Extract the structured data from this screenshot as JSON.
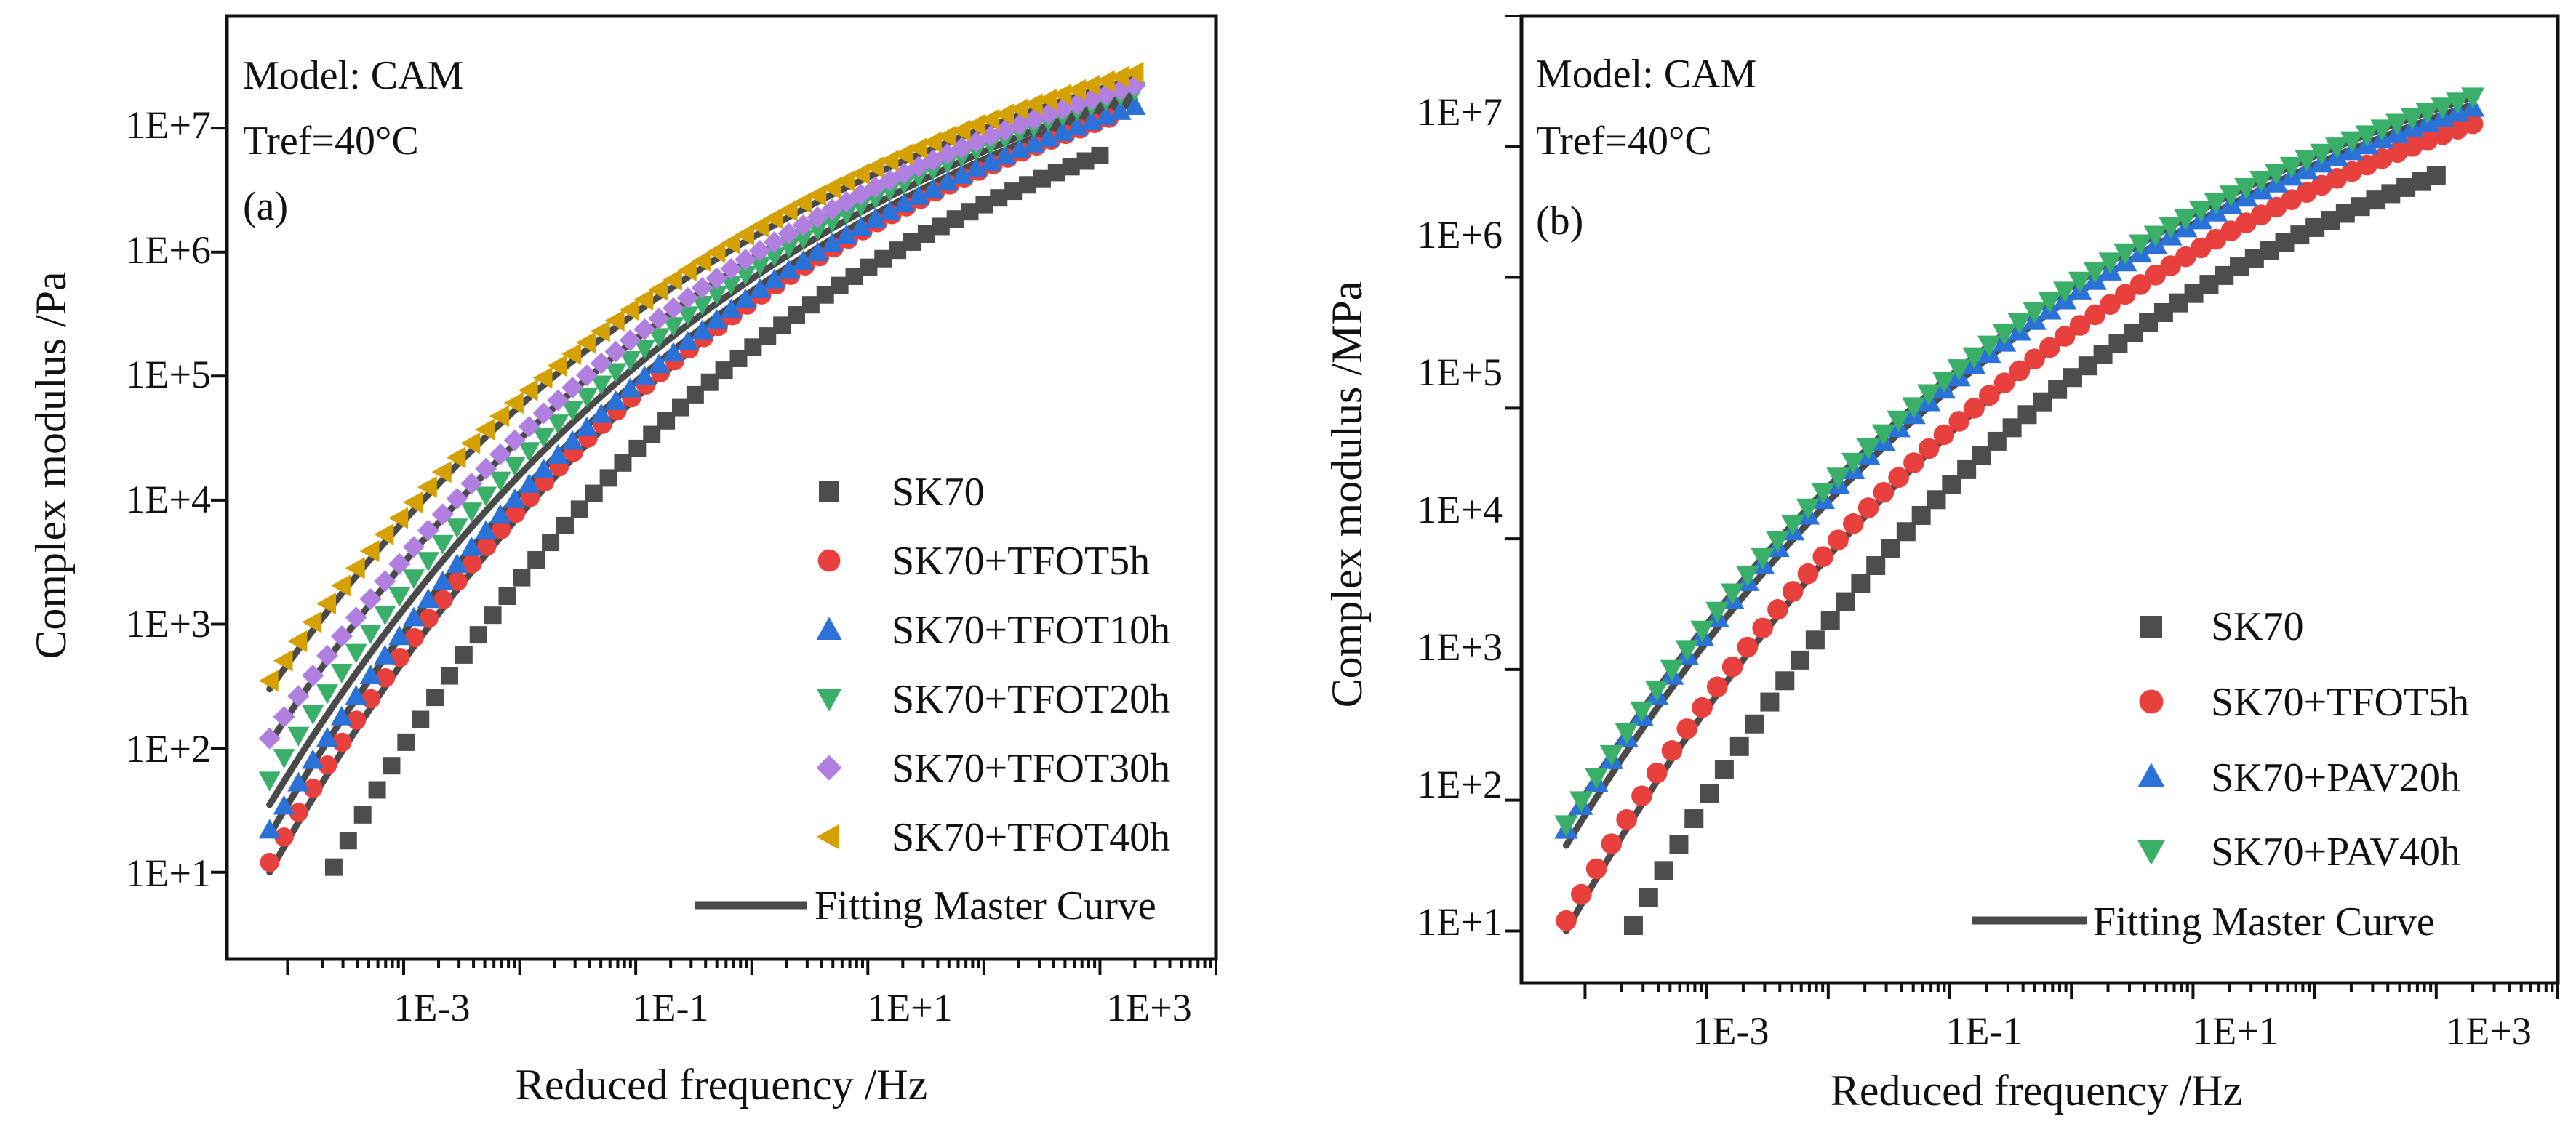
{
  "chart_data": [
    {
      "type": "scatter",
      "panel": "a",
      "annotations": [
        "Model: CAM",
        "Tref=40°C",
        "(a)"
      ],
      "xlabel": "Reduced frequency /Hz",
      "ylabel": "Complex modulus /Pa",
      "xscale": "log",
      "yscale": "log",
      "xlim": [
        3e-05,
        10000
      ],
      "ylim": [
        2,
        80000000
      ],
      "xticks": [
        0.001,
        0.1,
        10,
        1000
      ],
      "xtick_labels": [
        "1E-3",
        "1E-1",
        "1E+1",
        "1E+3"
      ],
      "yticks": [
        10,
        100,
        1000,
        10000,
        100000,
        1000000,
        10000000
      ],
      "ytick_labels": [
        "1E+1",
        "1E+2",
        "1E+3",
        "1E+4",
        "1E+5",
        "1E+6",
        "1E+7"
      ],
      "legend_position": "bottom-right",
      "fit_label": "Fitting Master Curve",
      "series": [
        {
          "name": "SK70",
          "marker": "square",
          "color": "#4d4d4d",
          "x_range": [
            0.00025,
            1000
          ],
          "y_range": [
            11,
            6000000
          ]
        },
        {
          "name": "SK70+TFOT5h",
          "marker": "circle",
          "color": "#e8403c",
          "x_range": [
            7e-05,
            1200
          ],
          "y_range": [
            12,
            12000000
          ]
        },
        {
          "name": "SK70+TFOT10h",
          "marker": "triangle-up",
          "color": "#2b72d8",
          "x_range": [
            7e-05,
            2000
          ],
          "y_range": [
            22,
            15000000
          ]
        },
        {
          "name": "SK70+TFOT20h",
          "marker": "triangle-down",
          "color": "#3aaf6a",
          "x_range": [
            7e-05,
            2000
          ],
          "y_range": [
            55,
            20000000
          ]
        },
        {
          "name": "SK70+TFOT30h",
          "marker": "diamond",
          "color": "#b07fe0",
          "x_range": [
            7e-05,
            2000
          ],
          "y_range": [
            120,
            22000000
          ]
        },
        {
          "name": "SK70+TFOT40h",
          "marker": "triangle-left",
          "color": "#d4a100",
          "x_range": [
            7e-05,
            2000
          ],
          "y_range": [
            350,
            28000000
          ]
        }
      ],
      "fits": [
        {
          "x_range": [
            7e-05,
            2000
          ],
          "y_range": [
            10,
            16000000
          ]
        },
        {
          "x_range": [
            7e-05,
            2000
          ],
          "y_range": [
            20,
            17000000
          ]
        },
        {
          "x_range": [
            7e-05,
            2000
          ],
          "y_range": [
            35,
            19000000
          ]
        },
        {
          "x_range": [
            7e-05,
            2000
          ],
          "y_range": [
            110,
            21000000
          ]
        },
        {
          "x_range": [
            7e-05,
            2000
          ],
          "y_range": [
            300,
            25000000
          ]
        }
      ]
    },
    {
      "type": "scatter",
      "panel": "b",
      "annotations": [
        "Model: CAM",
        "Tref=40°C",
        "(b)"
      ],
      "xlabel": "Reduced frequency /Hz",
      "ylabel": "Complex modulus /MPa",
      "xscale": "log",
      "yscale": "log",
      "xlim": [
        3e-05,
        10000
      ],
      "ylim": [
        4,
        100000000
      ],
      "xticks": [
        0.001,
        0.1,
        10,
        1000
      ],
      "xtick_labels": [
        "1E-3",
        "1E-1",
        "1E+1",
        "1E+3"
      ],
      "yticks": [
        10,
        100,
        1000,
        10000,
        100000,
        1000000,
        10000000
      ],
      "ytick_labels": [
        "1E+1",
        "1E+2",
        "1E+3",
        "1E+4",
        "1E+5",
        "1E+6",
        "1E+7"
      ],
      "legend_position": "bottom-right",
      "fit_label": "Fitting Master Curve",
      "series": [
        {
          "name": "SK70",
          "marker": "square",
          "color": "#4d4d4d",
          "x_range": [
            0.00025,
            1000
          ],
          "y_range": [
            11,
            6000000
          ]
        },
        {
          "name": "SK70+TFOT5h",
          "marker": "circle",
          "color": "#e8403c",
          "x_range": [
            7e-05,
            2000
          ],
          "y_range": [
            12,
            15000000
          ]
        },
        {
          "name": "SK70+PAV20h",
          "marker": "triangle-up",
          "color": "#2b72d8",
          "x_range": [
            7e-05,
            2000
          ],
          "y_range": [
            60,
            20000000
          ]
        },
        {
          "name": "SK70+PAV40h",
          "marker": "triangle-down",
          "color": "#3aaf6a",
          "x_range": [
            7e-05,
            2000
          ],
          "y_range": [
            65,
            24000000
          ]
        }
      ],
      "fits": [
        {
          "x_range": [
            7e-05,
            2000
          ],
          "y_range": [
            10,
            15000000
          ]
        },
        {
          "x_range": [
            7e-05,
            2000
          ],
          "y_range": [
            45,
            21000000
          ]
        },
        {
          "x_range": [
            7e-05,
            2000
          ],
          "y_range": [
            65,
            24000000
          ]
        }
      ]
    }
  ]
}
